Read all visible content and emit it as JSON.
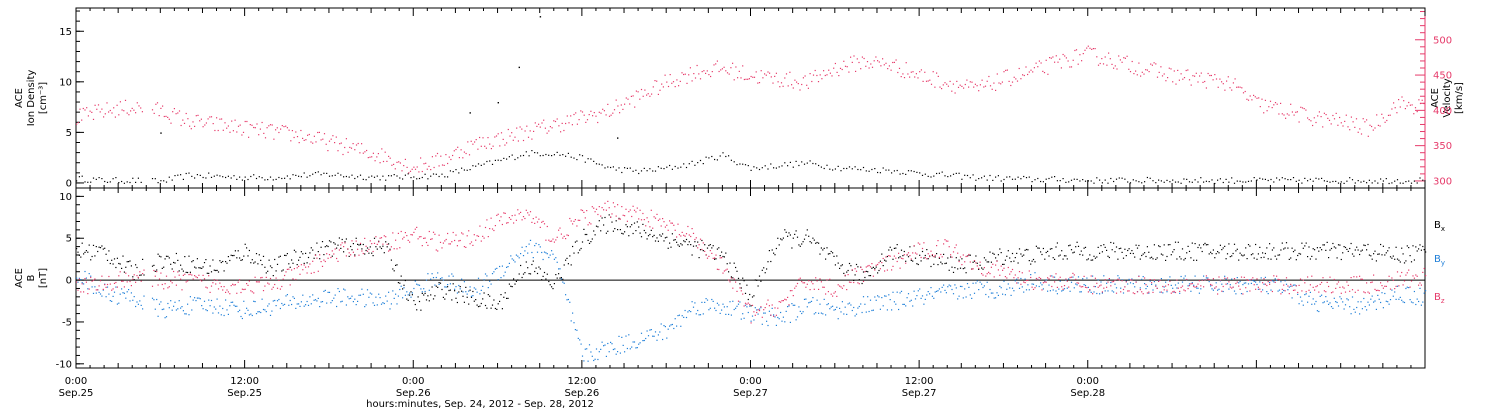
{
  "colors": {
    "black": "#000000",
    "pink": "#e63a6a",
    "blue": "#1f7fd8"
  },
  "chart_data": [
    {
      "type": "scatter",
      "panel": "top",
      "xrange_hours": [
        0,
        96
      ],
      "ylabel_left_lines": [
        "ACE",
        "Ion Density",
        "[cm⁻³]"
      ],
      "ylabel_right_lines": [
        "ACE",
        "Velocity",
        "[km/s]"
      ],
      "ylim_left": [
        -0.5,
        17.3
      ],
      "ylim_right": [
        290,
        545
      ],
      "yticks_left": [
        0,
        5,
        10,
        15
      ],
      "yticks_right": [
        300,
        350,
        400,
        450,
        500
      ],
      "series": [
        {
          "color": "#000000",
          "axis": "left",
          "x": [
            0,
            2,
            4,
            6,
            8,
            10,
            12,
            14,
            16,
            18,
            20,
            22,
            24,
            26,
            28,
            30,
            32,
            34,
            36,
            38,
            40,
            42,
            44,
            46,
            48,
            50,
            52,
            54,
            56,
            58,
            60,
            62,
            64,
            66,
            68,
            70,
            72,
            74,
            76,
            78,
            80,
            82,
            84,
            86,
            88,
            90,
            92,
            94,
            96
          ],
          "y": [
            0.5,
            0.3,
            0.3,
            0.2,
            0.8,
            0.7,
            0.6,
            0.6,
            0.8,
            0.9,
            0.7,
            0.6,
            0.7,
            0.8,
            1.5,
            2.2,
            3.0,
            3.0,
            2.5,
            1.5,
            1.2,
            1.5,
            2.0,
            2.8,
            1.5,
            1.8,
            2.0,
            1.6,
            1.4,
            1.3,
            1.0,
            0.8,
            0.6,
            0.5,
            0.4,
            0.4,
            0.3,
            0.3,
            0.3,
            0.3,
            0.3,
            0.3,
            0.3,
            0.3,
            0.3,
            0.3,
            0.3,
            0.3,
            0.3
          ],
          "outliers_x": [
            6,
            28,
            30,
            31.5,
            33,
            38.5
          ],
          "outliers_y": [
            5.0,
            7.0,
            8.0,
            11.5,
            16.5,
            4.5
          ]
        },
        {
          "color": "#e63a6a",
          "axis": "right",
          "x": [
            0,
            2,
            4,
            6,
            8,
            10,
            12,
            14,
            16,
            18,
            20,
            22,
            24,
            26,
            28,
            30,
            32,
            34,
            36,
            38,
            40,
            42,
            44,
            46,
            48,
            50,
            52,
            54,
            56,
            58,
            60,
            62,
            64,
            66,
            68,
            70,
            72,
            74,
            76,
            78,
            80,
            82,
            84,
            86,
            88,
            90,
            92,
            94,
            96
          ],
          "y": [
            390,
            400,
            405,
            400,
            385,
            380,
            375,
            370,
            365,
            355,
            345,
            335,
            320,
            330,
            350,
            360,
            370,
            380,
            390,
            400,
            420,
            440,
            455,
            460,
            450,
            445,
            440,
            460,
            470,
            465,
            450,
            440,
            430,
            445,
            455,
            470,
            480,
            470,
            460,
            450,
            445,
            440,
            410,
            400,
            390,
            385,
            375,
            410,
            405
          ]
        }
      ]
    },
    {
      "type": "scatter",
      "panel": "bottom",
      "xrange_hours": [
        0,
        96
      ],
      "ylabel_lines": [
        "ACE",
        "B",
        "[nT]"
      ],
      "ylim": [
        -10.5,
        11
      ],
      "yticks": [
        -10,
        -5,
        0,
        5,
        10
      ],
      "zero_line": true,
      "legend": [
        {
          "label": "B",
          "sub": "x",
          "color": "#000000"
        },
        {
          "label": "B",
          "sub": "y",
          "color": "#1f7fd8"
        },
        {
          "label": "B",
          "sub": "z",
          "color": "#e63a6a"
        }
      ],
      "series": [
        {
          "color": "#000000",
          "x": [
            0,
            2,
            4,
            6,
            8,
            10,
            12,
            14,
            16,
            18,
            20,
            22,
            24,
            26,
            28,
            30,
            32,
            34,
            36,
            38,
            40,
            42,
            44,
            46,
            48,
            50,
            52,
            54,
            56,
            58,
            60,
            62,
            64,
            66,
            68,
            70,
            72,
            74,
            76,
            78,
            80,
            82,
            84,
            86,
            88,
            90,
            92,
            94,
            96
          ],
          "y": [
            3.5,
            3.5,
            1.0,
            2.5,
            2.0,
            1.5,
            3.5,
            1.5,
            3.0,
            4.0,
            4.0,
            4.0,
            -3.0,
            -1.0,
            -2.0,
            -3.0,
            2.0,
            -0.5,
            5.0,
            7.0,
            6.0,
            5.0,
            4.0,
            3.0,
            -2.0,
            5.0,
            5.0,
            2.0,
            0.5,
            3.5,
            3.0,
            2.0,
            2.0,
            3.0,
            3.0,
            3.5,
            3.5,
            3.5,
            3.5,
            3.5,
            3.5,
            3.5,
            3.5,
            3.5,
            3.5,
            3.5,
            3.5,
            3.0,
            3.5
          ]
        },
        {
          "color": "#1f7fd8",
          "x": [
            0,
            2,
            4,
            6,
            8,
            10,
            12,
            14,
            16,
            18,
            20,
            22,
            24,
            26,
            28,
            30,
            32,
            34,
            36,
            38,
            40,
            42,
            44,
            46,
            48,
            50,
            52,
            54,
            56,
            58,
            60,
            62,
            64,
            66,
            68,
            70,
            72,
            74,
            76,
            78,
            80,
            82,
            84,
            86,
            88,
            90,
            92,
            94,
            96
          ],
          "y": [
            1.0,
            -1.5,
            -2.0,
            -3.5,
            -3.0,
            -3.0,
            -3.5,
            -3.0,
            -2.5,
            -2.0,
            -2.0,
            -2.5,
            -1.0,
            0.5,
            -1.5,
            1.0,
            4.0,
            3.0,
            -9.0,
            -8.0,
            -7.0,
            -6.0,
            -3.0,
            -3.0,
            -4.0,
            -4.5,
            -3.0,
            -3.5,
            -3.0,
            -2.5,
            -2.0,
            -1.5,
            -1.0,
            -1.0,
            0.0,
            -0.5,
            -0.5,
            -0.5,
            -0.5,
            -0.5,
            -0.5,
            -0.5,
            -0.5,
            -1.0,
            -2.5,
            -3.0,
            -3.0,
            -1.5,
            -2.0
          ]
        },
        {
          "color": "#e63a6a",
          "x": [
            0,
            2,
            4,
            6,
            8,
            10,
            12,
            14,
            16,
            18,
            20,
            22,
            24,
            26,
            28,
            30,
            32,
            34,
            36,
            38,
            40,
            42,
            44,
            46,
            48,
            50,
            52,
            54,
            56,
            58,
            60,
            62,
            64,
            66,
            68,
            70,
            72,
            74,
            76,
            78,
            80,
            82,
            84,
            86,
            88,
            90,
            92,
            94,
            96
          ],
          "y": [
            -0.5,
            -0.5,
            0.5,
            0.0,
            0.0,
            -0.5,
            -0.5,
            -0.5,
            1.0,
            3.0,
            4.0,
            4.5,
            5.5,
            4.5,
            5.0,
            7.0,
            8.0,
            5.0,
            7.5,
            8.5,
            8.0,
            6.5,
            5.0,
            1.5,
            -4.0,
            -3.0,
            0.0,
            -1.0,
            1.0,
            2.0,
            3.5,
            4.0,
            2.0,
            1.0,
            0.0,
            0.0,
            -0.5,
            -0.5,
            -0.5,
            -0.5,
            -0.5,
            -0.5,
            -0.5,
            -0.5,
            -0.5,
            -0.5,
            -0.5,
            0.0,
            0.5
          ]
        }
      ]
    }
  ],
  "x_axis": {
    "ticks_hours": [
      0,
      12,
      24,
      36,
      48,
      60,
      72
    ],
    "tick_time": [
      "0:00",
      "12:00",
      "0:00",
      "12:00",
      "0:00",
      "12:00",
      "0:00"
    ],
    "tick_date": [
      "Sep.25",
      "Sep.25",
      "Sep.26",
      "Sep.26",
      "Sep.27",
      "Sep.27",
      "Sep.28"
    ],
    "label": "hours:minutes, Sep. 24, 2012 - Sep. 28, 2012"
  }
}
